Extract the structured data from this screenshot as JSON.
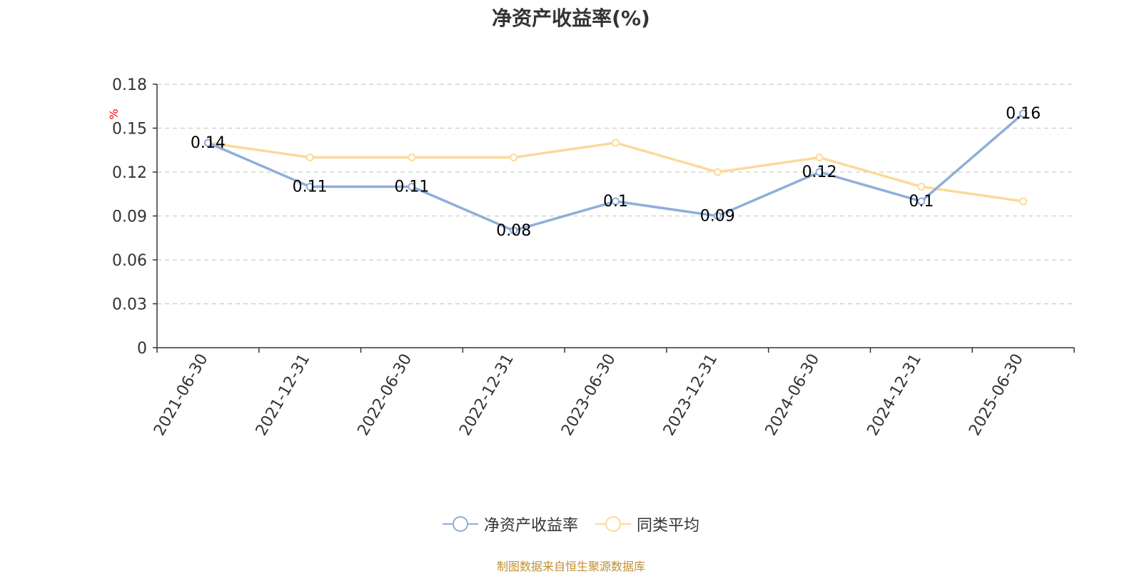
{
  "chart_data": {
    "type": "line",
    "title": "净资产收益率(%)",
    "ylabel": "%",
    "xlabel": "",
    "categories": [
      "2021-06-30",
      "2021-12-31",
      "2022-06-30",
      "2022-12-31",
      "2023-06-30",
      "2023-12-31",
      "2024-06-30",
      "2024-12-31",
      "2025-06-30"
    ],
    "ylim": [
      0,
      0.18
    ],
    "yticks": [
      "0",
      "0.03",
      "0.06",
      "0.09",
      "0.12",
      "0.15",
      "0.18"
    ],
    "grid": true,
    "legend_position": "bottom",
    "series": [
      {
        "name": "净资产收益率",
        "color": "#8eaed8",
        "values": [
          0.14,
          0.11,
          0.11,
          0.08,
          0.1,
          0.09,
          0.12,
          0.1,
          0.16
        ],
        "labels": [
          "0.14",
          "0.11",
          "0.11",
          "0.08",
          "0.1",
          "0.09",
          "0.12",
          "0.1",
          "0.16"
        ],
        "show_labels": true
      },
      {
        "name": "同类平均",
        "color": "#fcd99a",
        "values": [
          0.14,
          0.13,
          0.13,
          0.13,
          0.14,
          0.12,
          0.13,
          0.11,
          0.1
        ],
        "show_labels": false
      }
    ]
  },
  "source_note": "制图数据来自恒生聚源数据库",
  "colors": {
    "axis": "#333333",
    "grid": "#cccccc",
    "unit_label": "#ff0000"
  }
}
